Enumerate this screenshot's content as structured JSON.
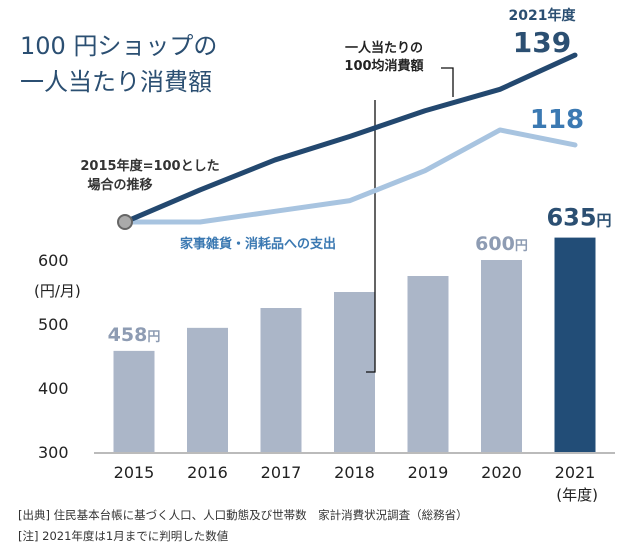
{
  "title_lines": [
    "100 円ショップの",
    "一人当たり消費額"
  ],
  "colors": {
    "dark_line": "#23486f",
    "light_line": "#a8c4e0",
    "bar": "#abb6c8",
    "bar_highlight": "#224d77",
    "text_dark": "#2b4f72",
    "text_light_value": "#3b79b2",
    "text_bar_label": "#8e9cb3"
  },
  "chart_data": [
    {
      "type": "bar",
      "categories": [
        "2015",
        "2016",
        "2017",
        "2018",
        "2019",
        "2020",
        "2021"
      ],
      "values": [
        458,
        494,
        525,
        550,
        575,
        600,
        635
      ],
      "ylim": [
        300,
        600
      ],
      "yticks": [
        "300",
        "400",
        "500",
        "600"
      ],
      "ylabel": "(円/月)",
      "xlabel": "(年度)",
      "highlight_category": "2021",
      "data_labels": [
        {
          "category": "2015",
          "text": "458",
          "unit": "円"
        },
        {
          "category": "2020",
          "text": "600",
          "unit": "円"
        },
        {
          "category": "2021",
          "text": "635",
          "unit": "円"
        }
      ],
      "grid": false
    },
    {
      "type": "line",
      "x": [
        "2015",
        "2016",
        "2017",
        "2018",
        "2019",
        "2020",
        "2021"
      ],
      "annotation": [
        "2015年度=100とした",
        "場合の推移"
      ],
      "series": [
        {
          "name": "一人当たりの100均消費額",
          "name_lines": [
            "一人当たりの",
            "100均消費額"
          ],
          "values": [
            100,
            107.5,
            114.5,
            120,
            126,
            131,
            139
          ],
          "end_label": "139",
          "end_label_caption": "2021年度"
        },
        {
          "name": "家事雑貨・消耗品への支出",
          "values": [
            100,
            100,
            102.5,
            105,
            112,
            121.5,
            118
          ],
          "end_label": "118"
        }
      ]
    }
  ],
  "footnotes": [
    "[出典] 住民基本台帳に基づく人口、人口動態及び世帯数　家計消費状況調査（総務省）",
    "[注] 2021年度は1月までに判明した数値"
  ]
}
